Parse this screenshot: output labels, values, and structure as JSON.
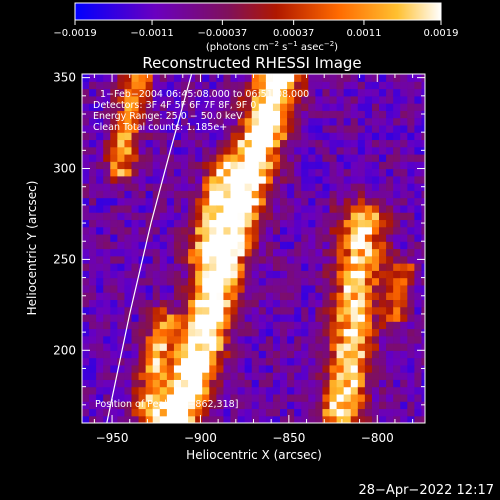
{
  "chart_data": {
    "type": "heatmap",
    "title": "Reconstructed RHESSI Image",
    "xlabel": "Heliocentric X (arcsec)",
    "ylabel": "Heliocentric Y (arcsec)",
    "xlim": [
      -967,
      -773
    ],
    "ylim": [
      160,
      352
    ],
    "x_ticks": [
      -950,
      -900,
      -850,
      -800
    ],
    "x_tick_labels": [
      "−950",
      "−900",
      "−850",
      "−800"
    ],
    "y_ticks": [
      200,
      250,
      300,
      350
    ],
    "y_tick_labels": [
      "200",
      "250",
      "300",
      "350"
    ],
    "colorbar": {
      "range": [
        -0.0019,
        0.0019
      ],
      "tick_values": [
        -0.0019,
        -0.0011,
        -0.00037,
        0.00037,
        0.0011,
        0.0019
      ],
      "tick_labels": [
        "−0.0019",
        "−0.0011",
        "−0.00037",
        "0.00037",
        "0.0011",
        "0.0019"
      ],
      "units_main": "(photons cm",
      "units_sup1": "−2",
      "units_mid": " s",
      "units_sup2": "−1",
      "units_tail": " asec",
      "units_sup3": "−2",
      "units_close": ")",
      "colors": [
        "#0000ff",
        "#7000b0",
        "#7a0a2a",
        "#d02000",
        "#ff7a00",
        "#ffd040",
        "#ffffff"
      ]
    },
    "info_lines": [
      "1−Feb−2004 06:45:08.000 to 06:51:08.000",
      "Detectors: 3F 4F 5F 6F 7F 8F, 9F 0",
      "Energy Range: 25.0 − 50.0 keV",
      "Clean    Total counts: 1.185e+"
    ],
    "peak_label": "Position of Peak = [−862,318]",
    "peak_position": [
      -862,
      318
    ],
    "limb_curve": [
      [
        -953,
        160
      ],
      [
        -940,
        220
      ],
      [
        -928,
        270
      ],
      [
        -917,
        310
      ],
      [
        -905,
        352
      ]
    ],
    "sources": [
      {
        "ridge": [
          [
            -915,
            160
          ],
          [
            -900,
            200
          ],
          [
            -890,
            240
          ],
          [
            -878,
            280
          ],
          [
            -865,
            320
          ],
          [
            -855,
            352
          ]
        ],
        "peak": 1.0,
        "width": 9
      },
      {
        "ridge": [
          [
            -820,
            165
          ],
          [
            -815,
            200
          ],
          [
            -812,
            240
          ],
          [
            -808,
            270
          ]
        ],
        "peak": 0.75,
        "width": 9
      },
      {
        "ridge": [
          [
            -945,
            300
          ],
          [
            -940,
            330
          ],
          [
            -935,
            352
          ]
        ],
        "peak": 0.55,
        "width": 6
      },
      {
        "ridge": [
          [
            -900,
            255
          ],
          [
            -895,
            275
          ],
          [
            -888,
            300
          ]
        ],
        "peak": 0.5,
        "width": 6
      },
      {
        "ridge": [
          [
            -930,
            170
          ],
          [
            -925,
            195
          ],
          [
            -920,
            215
          ]
        ],
        "peak": 0.55,
        "width": 6
      },
      {
        "ridge": [
          [
            -790,
            220
          ],
          [
            -785,
            245
          ]
        ],
        "peak": 0.45,
        "width": 5
      }
    ]
  },
  "timestamp": "28−Apr−2022 12:17"
}
